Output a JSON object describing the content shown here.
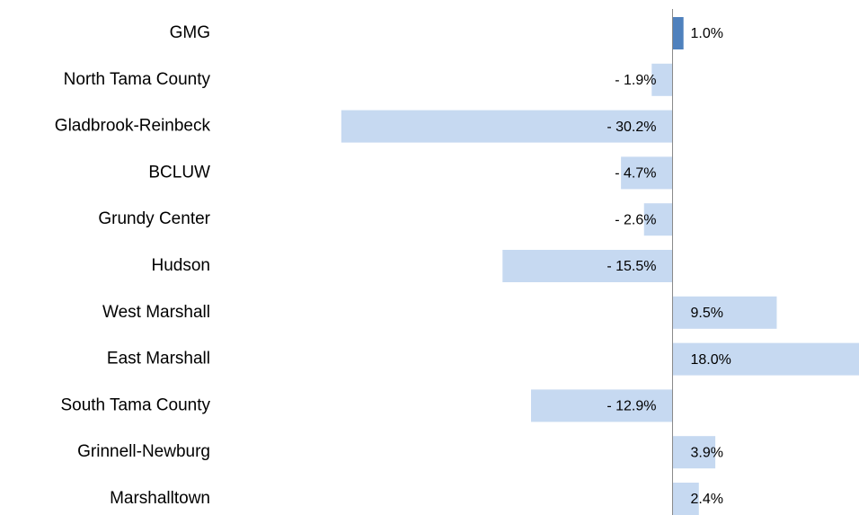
{
  "chart_data": {
    "type": "hbar",
    "categories": [
      "GMG",
      "North Tama County",
      "Gladbrook-Reinbeck",
      "BCLUW",
      "Grundy Center",
      "Hudson",
      "West Marshall",
      "East Marshall",
      "South Tama County",
      "Grinnell-Newburg",
      "Marshalltown"
    ],
    "values": [
      1.0,
      -1.9,
      -30.2,
      -4.7,
      -2.6,
      -15.5,
      9.5,
      18.0,
      -12.9,
      3.9,
      2.4
    ],
    "value_labels": [
      "1.0%",
      "- 1.9%",
      "- 30.2%",
      "- 4.7%",
      "- 2.6%",
      "- 15.5%",
      "9.5%",
      "18.0%",
      "- 12.9%",
      "3.9%",
      "2.4%"
    ],
    "colors": [
      "#4f81bd",
      "#c6d9f1",
      "#c6d9f1",
      "#c6d9f1",
      "#c6d9f1",
      "#c6d9f1",
      "#c6d9f1",
      "#c6d9f1",
      "#c6d9f1",
      "#c6d9f1",
      "#c6d9f1"
    ],
    "xlim": [
      -41,
      17
    ]
  }
}
